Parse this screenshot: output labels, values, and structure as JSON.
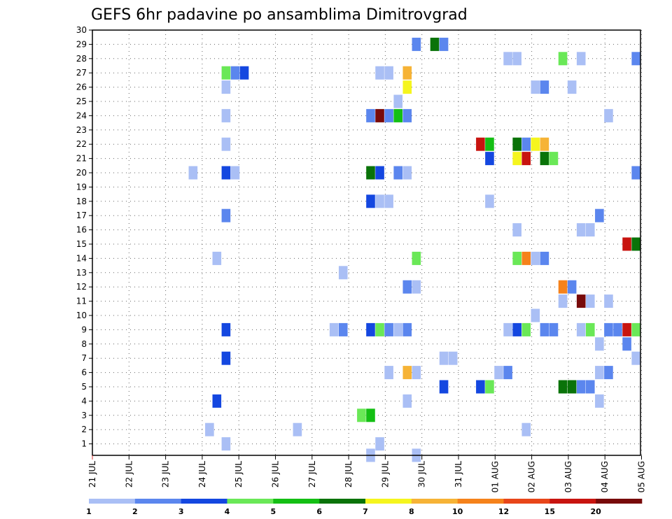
{
  "chart_data": {
    "type": "heatmap",
    "title": "GEFS 6hr padavine po ansamblima Dimitrovgrad",
    "xlabel": "",
    "ylabel": "",
    "x_ticks": [
      "21 JUL",
      "22 JUL",
      "23 JUL",
      "24 JUL",
      "25 JUL",
      "26 JUL",
      "27 JUL",
      "28 JUL",
      "29 JUL",
      "30 JUL",
      "31 JUL",
      "01 AUG",
      "02 AUG",
      "03 AUG",
      "04 AUG",
      "05 AUG"
    ],
    "xlim": [
      0,
      15.2
    ],
    "y_ticks": [
      1,
      2,
      3,
      4,
      5,
      6,
      7,
      8,
      9,
      10,
      11,
      12,
      13,
      14,
      15,
      16,
      17,
      18,
      19,
      20,
      21,
      22,
      23,
      24,
      25,
      26,
      27,
      28,
      29,
      30
    ],
    "ylim": [
      0.2,
      30
    ],
    "grid": true,
    "colorbar": {
      "labels": [
        "1",
        "2",
        "3",
        "4",
        "5",
        "6",
        "7",
        "8",
        "10",
        "12",
        "15",
        "20"
      ],
      "colors": [
        "#aabff5",
        "#5b86ee",
        "#1447e0",
        "#6ae857",
        "#14bf14",
        "#0a7309",
        "#f5f51e",
        "#f6b336",
        "#f5821b",
        "#e8461a",
        "#c8140f",
        "#780a0a"
      ]
    },
    "cells": [
      {
        "x": 3.4,
        "y": 4,
        "c": 3
      },
      {
        "x": 3.65,
        "y": 1,
        "c": 1
      },
      {
        "x": 3.2,
        "y": 2,
        "c": 1
      },
      {
        "x": 3.65,
        "y": 27,
        "c": 4
      },
      {
        "x": 3.9,
        "y": 27,
        "c": 2
      },
      {
        "x": 4.15,
        "y": 27,
        "c": 3
      },
      {
        "x": 3.65,
        "y": 26,
        "c": 1
      },
      {
        "x": 3.65,
        "y": 24,
        "c": 1
      },
      {
        "x": 3.65,
        "y": 22,
        "c": 1
      },
      {
        "x": 2.75,
        "y": 20,
        "c": 1
      },
      {
        "x": 3.65,
        "y": 20,
        "c": 3
      },
      {
        "x": 3.9,
        "y": 20,
        "c": 1
      },
      {
        "x": 3.65,
        "y": 17,
        "c": 2
      },
      {
        "x": 3.4,
        "y": 14,
        "c": 1
      },
      {
        "x": 3.65,
        "y": 9,
        "c": 3
      },
      {
        "x": 3.65,
        "y": 7,
        "c": 3
      },
      {
        "x": 5.6,
        "y": 2,
        "c": 1
      },
      {
        "x": 6.85,
        "y": 13,
        "c": 1
      },
      {
        "x": 6.6,
        "y": 9,
        "c": 1
      },
      {
        "x": 6.85,
        "y": 9,
        "c": 2
      },
      {
        "x": 7.85,
        "y": 27,
        "c": 1
      },
      {
        "x": 8.1,
        "y": 27,
        "c": 1
      },
      {
        "x": 8.6,
        "y": 27,
        "c": 8
      },
      {
        "x": 8.6,
        "y": 26,
        "c": 7
      },
      {
        "x": 8.35,
        "y": 25,
        "c": 1
      },
      {
        "x": 7.6,
        "y": 24,
        "c": 2
      },
      {
        "x": 7.85,
        "y": 24,
        "c": 12
      },
      {
        "x": 8.1,
        "y": 24,
        "c": 2
      },
      {
        "x": 8.35,
        "y": 24,
        "c": 5
      },
      {
        "x": 8.6,
        "y": 24,
        "c": 2
      },
      {
        "x": 7.6,
        "y": 20,
        "c": 6
      },
      {
        "x": 7.85,
        "y": 20,
        "c": 3
      },
      {
        "x": 8.35,
        "y": 20,
        "c": 2
      },
      {
        "x": 8.6,
        "y": 20,
        "c": 1
      },
      {
        "x": 7.6,
        "y": 18,
        "c": 3
      },
      {
        "x": 7.85,
        "y": 18,
        "c": 1
      },
      {
        "x": 8.1,
        "y": 18,
        "c": 1
      },
      {
        "x": 8.6,
        "y": 12,
        "c": 2
      },
      {
        "x": 8.85,
        "y": 12,
        "c": 1
      },
      {
        "x": 7.6,
        "y": 9,
        "c": 3
      },
      {
        "x": 7.85,
        "y": 9,
        "c": 4
      },
      {
        "x": 8.1,
        "y": 9,
        "c": 2
      },
      {
        "x": 8.35,
        "y": 9,
        "c": 1
      },
      {
        "x": 8.6,
        "y": 9,
        "c": 2
      },
      {
        "x": 8.1,
        "y": 6,
        "c": 1
      },
      {
        "x": 8.6,
        "y": 6,
        "c": 8
      },
      {
        "x": 8.85,
        "y": 6,
        "c": 1
      },
      {
        "x": 8.6,
        "y": 4,
        "c": 1
      },
      {
        "x": 7.35,
        "y": 3,
        "c": 4
      },
      {
        "x": 7.6,
        "y": 3,
        "c": 5
      },
      {
        "x": 7.85,
        "y": 1,
        "c": 1
      },
      {
        "x": 7.6,
        "y": 0.2,
        "c": 1
      },
      {
        "x": 8.85,
        "y": 0.2,
        "c": 1
      },
      {
        "x": 8.85,
        "y": 29,
        "c": 2
      },
      {
        "x": 9.35,
        "y": 29,
        "c": 6
      },
      {
        "x": 9.6,
        "y": 29,
        "c": 2
      },
      {
        "x": 8.85,
        "y": 14,
        "c": 4
      },
      {
        "x": 9.6,
        "y": 7,
        "c": 1
      },
      {
        "x": 9.85,
        "y": 7,
        "c": 1
      },
      {
        "x": 9.6,
        "y": 5,
        "c": 3
      },
      {
        "x": 10.6,
        "y": 22,
        "c": 11
      },
      {
        "x": 10.85,
        "y": 22,
        "c": 5
      },
      {
        "x": 10.85,
        "y": 21,
        "c": 3
      },
      {
        "x": 10.85,
        "y": 18,
        "c": 1
      },
      {
        "x": 10.6,
        "y": 5,
        "c": 3
      },
      {
        "x": 10.85,
        "y": 5,
        "c": 4
      },
      {
        "x": 11.35,
        "y": 28,
        "c": 1
      },
      {
        "x": 11.6,
        "y": 28,
        "c": 1
      },
      {
        "x": 11.6,
        "y": 22,
        "c": 6
      },
      {
        "x": 11.85,
        "y": 22,
        "c": 2
      },
      {
        "x": 12.1,
        "y": 22,
        "c": 7
      },
      {
        "x": 12.35,
        "y": 22,
        "c": 8
      },
      {
        "x": 11.6,
        "y": 21,
        "c": 7
      },
      {
        "x": 11.85,
        "y": 21,
        "c": 11
      },
      {
        "x": 12.35,
        "y": 21,
        "c": 6
      },
      {
        "x": 12.6,
        "y": 21,
        "c": 4
      },
      {
        "x": 11.6,
        "y": 16,
        "c": 1
      },
      {
        "x": 11.6,
        "y": 14,
        "c": 4
      },
      {
        "x": 11.85,
        "y": 14,
        "c": 9
      },
      {
        "x": 12.1,
        "y": 14,
        "c": 1
      },
      {
        "x": 12.35,
        "y": 14,
        "c": 2
      },
      {
        "x": 12.1,
        "y": 10,
        "c": 1
      },
      {
        "x": 11.35,
        "y": 9,
        "c": 1
      },
      {
        "x": 11.6,
        "y": 9,
        "c": 3
      },
      {
        "x": 11.85,
        "y": 9,
        "c": 4
      },
      {
        "x": 12.35,
        "y": 9,
        "c": 2
      },
      {
        "x": 12.6,
        "y": 9,
        "c": 2
      },
      {
        "x": 11.1,
        "y": 6,
        "c": 1
      },
      {
        "x": 11.35,
        "y": 6,
        "c": 2
      },
      {
        "x": 11.85,
        "y": 2,
        "c": 1
      },
      {
        "x": 12.1,
        "y": 26,
        "c": 1
      },
      {
        "x": 12.35,
        "y": 26,
        "c": 2
      },
      {
        "x": 12.85,
        "y": 28,
        "c": 4
      },
      {
        "x": 13.35,
        "y": 28,
        "c": 1
      },
      {
        "x": 13.1,
        "y": 26,
        "c": 1
      },
      {
        "x": 12.85,
        "y": 12,
        "c": 9
      },
      {
        "x": 13.1,
        "y": 12,
        "c": 2
      },
      {
        "x": 12.85,
        "y": 11,
        "c": 1
      },
      {
        "x": 13.35,
        "y": 11,
        "c": 12
      },
      {
        "x": 13.6,
        "y": 11,
        "c": 1
      },
      {
        "x": 14.1,
        "y": 11,
        "c": 1
      },
      {
        "x": 13.35,
        "y": 16,
        "c": 1
      },
      {
        "x": 13.6,
        "y": 16,
        "c": 1
      },
      {
        "x": 13.85,
        "y": 17,
        "c": 2
      },
      {
        "x": 13.35,
        "y": 9,
        "c": 1
      },
      {
        "x": 13.6,
        "y": 9,
        "c": 4
      },
      {
        "x": 14.1,
        "y": 9,
        "c": 2
      },
      {
        "x": 14.35,
        "y": 9,
        "c": 2
      },
      {
        "x": 14.6,
        "y": 9,
        "c": 11
      },
      {
        "x": 14.85,
        "y": 9,
        "c": 4
      },
      {
        "x": 13.85,
        "y": 8,
        "c": 1
      },
      {
        "x": 14.6,
        "y": 8,
        "c": 2
      },
      {
        "x": 14.85,
        "y": 7,
        "c": 1
      },
      {
        "x": 13.85,
        "y": 6,
        "c": 1
      },
      {
        "x": 14.1,
        "y": 6,
        "c": 2
      },
      {
        "x": 12.85,
        "y": 5,
        "c": 6
      },
      {
        "x": 13.1,
        "y": 5,
        "c": 6
      },
      {
        "x": 13.35,
        "y": 5,
        "c": 2
      },
      {
        "x": 13.6,
        "y": 5,
        "c": 2
      },
      {
        "x": 13.85,
        "y": 4,
        "c": 1
      },
      {
        "x": 14.1,
        "y": 24,
        "c": 1
      },
      {
        "x": 14.85,
        "y": 28,
        "c": 2
      },
      {
        "x": 14.85,
        "y": 20,
        "c": 2
      },
      {
        "x": 14.6,
        "y": 15,
        "c": 11
      },
      {
        "x": 14.85,
        "y": 15,
        "c": 6
      }
    ]
  }
}
